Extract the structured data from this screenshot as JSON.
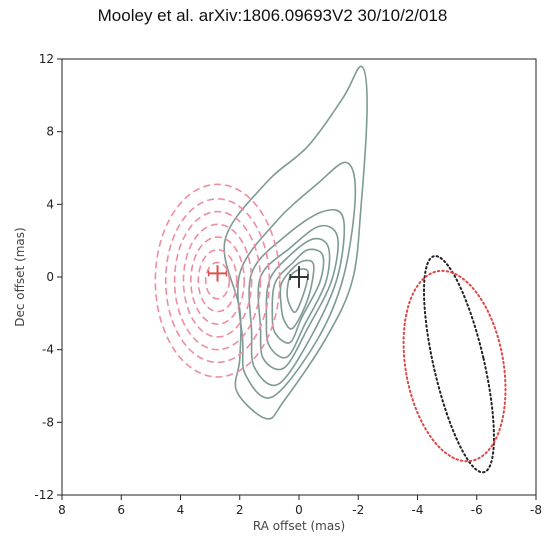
{
  "header": {
    "text": "Mooley et al. arXiv:1806.09693V2  30/10/2/018"
  },
  "chart_data": {
    "type": "contour",
    "title": "Mooley et al. arXiv:1806.09693V2  30/10/2/018",
    "xlabel": "RA offset (mas)",
    "ylabel": "Dec offset (mas)",
    "xlim": [
      8,
      -8
    ],
    "ylim": [
      -12,
      12
    ],
    "xticks": [
      8,
      6,
      4,
      2,
      0,
      -2,
      -4,
      -6,
      -8
    ],
    "yticks": [
      12,
      8,
      4,
      0,
      -4,
      -8,
      -12
    ],
    "grid": false,
    "colors": {
      "green": "#7d9a94",
      "pink": "#ef8da0",
      "black_marker": "#333333",
      "red_marker": "#d9534f",
      "red_dotted": "#e04646",
      "black_dotted": "#222222"
    },
    "series": [
      {
        "style": "solid",
        "color": "#7d9a94",
        "levels": [
          {
            "pts": [
              [
                1.1,
                -7.8
              ],
              [
                0.5,
                -6.8
              ],
              [
                -0.9,
                -3.4
              ],
              [
                -1.8,
                -0.2
              ],
              [
                -2.1,
                4.0
              ],
              [
                -2.3,
                9.5
              ],
              [
                -2.1,
                11.6
              ],
              [
                -1.5,
                9.9
              ],
              [
                -0.3,
                7.2
              ],
              [
                1.1,
                5.2
              ],
              [
                2.5,
                2.0
              ],
              [
                2.0,
                -1.8
              ],
              [
                2.0,
                -4.5
              ],
              [
                2.1,
                -6.3
              ]
            ]
          },
          {
            "pts": [
              [
                0.9,
                -6.6
              ],
              [
                -0.6,
                -3.5
              ],
              [
                -1.5,
                0.0
              ],
              [
                -1.9,
                4.5
              ],
              [
                -1.6,
                6.3
              ],
              [
                -0.6,
                5.1
              ],
              [
                0.8,
                3.0
              ],
              [
                2.0,
                0.2
              ],
              [
                1.9,
                -3.5
              ],
              [
                1.8,
                -5.4
              ]
            ]
          },
          {
            "pts": [
              [
                0.7,
                -5.9
              ],
              [
                -0.4,
                -3.3
              ],
              [
                -1.3,
                0.0
              ],
              [
                -1.5,
                3.2
              ],
              [
                -0.8,
                3.6
              ],
              [
                0.5,
                2.2
              ],
              [
                1.6,
                0.2
              ],
              [
                1.6,
                -3.0
              ],
              [
                1.5,
                -5.0
              ]
            ]
          },
          {
            "pts": [
              [
                0.5,
                -5.0
              ],
              [
                -0.3,
                -2.8
              ],
              [
                -1.1,
                -0.2
              ],
              [
                -1.3,
                2.2
              ],
              [
                -0.7,
                2.8
              ],
              [
                0.3,
                1.6
              ],
              [
                1.3,
                0.0
              ],
              [
                1.3,
                -2.8
              ],
              [
                1.2,
                -4.5
              ]
            ]
          },
          {
            "pts": [
              [
                0.4,
                -4.4
              ],
              [
                -0.2,
                -2.6
              ],
              [
                -0.9,
                -0.3
              ],
              [
                -1.0,
                1.6
              ],
              [
                -0.5,
                2.1
              ],
              [
                0.3,
                1.2
              ],
              [
                1.0,
                -0.2
              ],
              [
                1.1,
                -2.4
              ],
              [
                1.0,
                -3.8
              ]
            ]
          },
          {
            "pts": [
              [
                0.3,
                -3.6
              ],
              [
                -0.1,
                -2.2
              ],
              [
                -0.7,
                -0.3
              ],
              [
                -0.8,
                1.2
              ],
              [
                -0.3,
                1.5
              ],
              [
                0.2,
                0.8
              ],
              [
                0.8,
                -0.3
              ],
              [
                0.9,
                -2.0
              ],
              [
                0.8,
                -3.1
              ]
            ]
          },
          {
            "pts": [
              [
                0.2,
                -2.8
              ],
              [
                -0.3,
                -1.2
              ],
              [
                -0.5,
                0.6
              ],
              [
                -0.2,
                0.9
              ],
              [
                0.2,
                0.5
              ],
              [
                0.6,
                -0.4
              ],
              [
                0.6,
                -1.6
              ],
              [
                0.5,
                -2.4
              ]
            ]
          },
          {
            "pts": [
              [
                0.1,
                -1.9
              ],
              [
                -0.2,
                -0.7
              ],
              [
                -0.3,
                0.3
              ],
              [
                0.0,
                0.4
              ],
              [
                0.3,
                0.0
              ],
              [
                0.4,
                -0.9
              ],
              [
                0.3,
                -1.6
              ]
            ]
          }
        ]
      },
      {
        "style": "dashed",
        "color": "#ef8da0",
        "ellipses": [
          {
            "cx": 2.75,
            "cy": -0.2,
            "rx": 2.1,
            "ry": 5.3
          },
          {
            "cx": 2.75,
            "cy": -0.2,
            "rx": 1.75,
            "ry": 4.5
          },
          {
            "cx": 2.75,
            "cy": -0.2,
            "rx": 1.45,
            "ry": 3.8
          },
          {
            "cx": 2.75,
            "cy": -0.2,
            "rx": 1.15,
            "ry": 3.1
          },
          {
            "cx": 2.75,
            "cy": -0.2,
            "rx": 0.9,
            "ry": 2.4
          },
          {
            "cx": 2.75,
            "cy": -0.2,
            "rx": 0.65,
            "ry": 1.7
          },
          {
            "cx": 2.75,
            "cy": -0.2,
            "rx": 0.4,
            "ry": 1.0
          }
        ]
      },
      {
        "style": "dotted",
        "color": "#222222",
        "ellipses": [
          {
            "cx": -5.4,
            "cy": -4.8,
            "rx": 0.85,
            "ry": 6.1,
            "rotate": -13
          }
        ]
      },
      {
        "style": "dotted",
        "color": "#e04646",
        "ellipses": [
          {
            "cx": -5.25,
            "cy": -4.9,
            "rx": 1.65,
            "ry": 5.3,
            "rotate": -10
          }
        ]
      }
    ],
    "markers": [
      {
        "x": 2.75,
        "y": 0.2,
        "xerr": 0.3,
        "yerr": 0.45,
        "color": "#d9534f"
      },
      {
        "x": 0.0,
        "y": 0.0,
        "xerr": 0.3,
        "yerr": 0.6,
        "color": "#333333"
      }
    ]
  }
}
